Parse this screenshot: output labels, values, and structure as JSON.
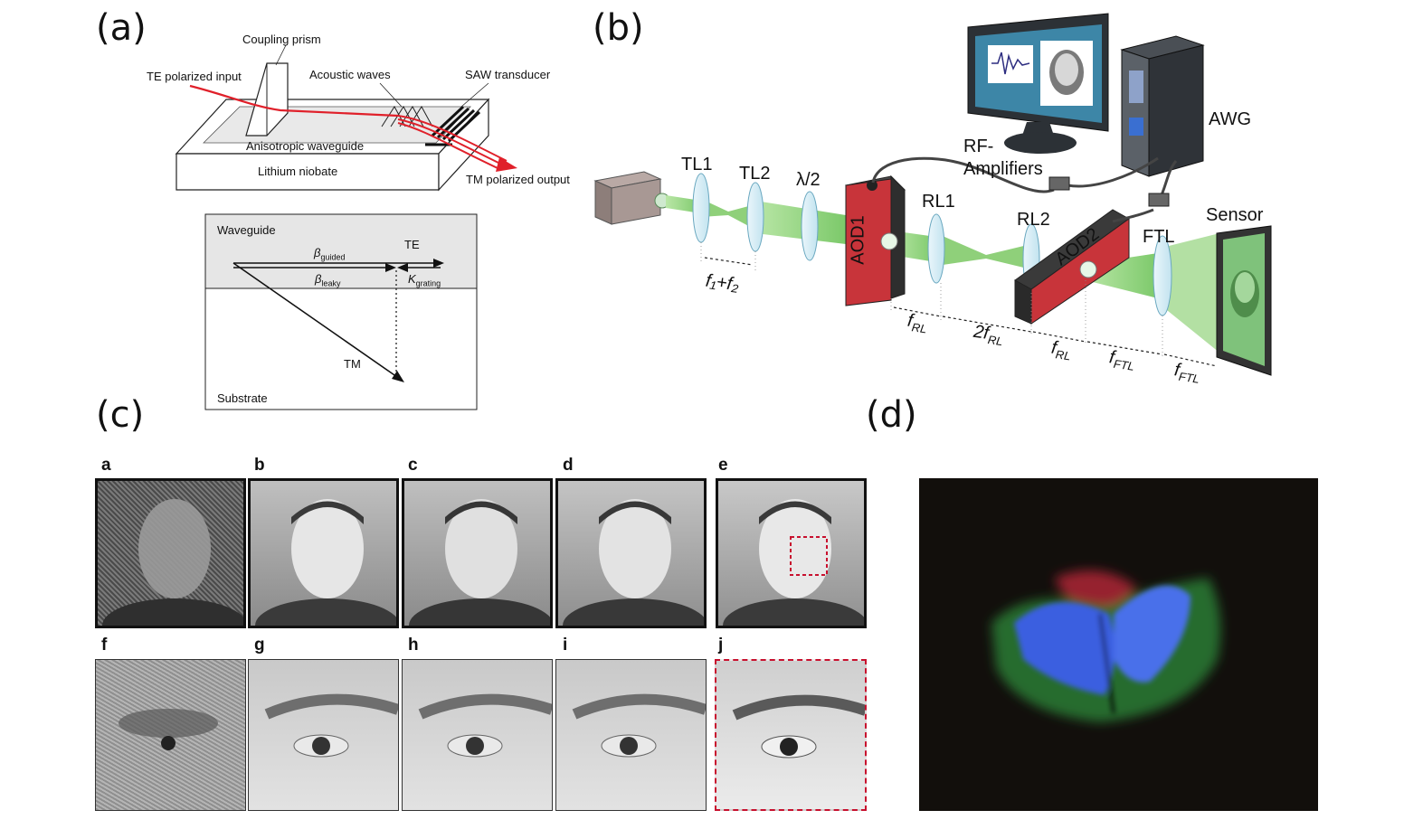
{
  "panels": {
    "a": "(a)",
    "b": "(b)",
    "c": "(c)",
    "d": "(d)"
  },
  "panel_a": {
    "coupling_prism": "Coupling prism",
    "te_input": "TE polarized input",
    "acoustic_waves": "Acoustic waves",
    "saw_transducer": "SAW transducer",
    "waveguide": "Anisotropic waveguide",
    "substrate": "Lithium niobate",
    "tm_output": "TM polarized output",
    "diagram": {
      "waveguide": "Waveguide",
      "te": "TE",
      "beta_guided": "β",
      "beta_guided_sub": "guided",
      "beta_leaky": "β",
      "beta_leaky_sub": "leaky",
      "k_grating": "K",
      "k_grating_sub": "grating",
      "tm": "TM",
      "substrate": "Substrate"
    }
  },
  "panel_b": {
    "tl1": "TL1",
    "tl2": "TL2",
    "half_wave": "λ/2",
    "aod1": "AOD1",
    "rl1": "RL1",
    "rl2": "RL2",
    "aod2": "AOD2",
    "ftl": "FTL",
    "sensor": "Sensor",
    "rf_amplifiers_1": "RF-",
    "rf_amplifiers_2": "Amplifiers",
    "awg": "AWG",
    "f1f2": "f₁+f₂",
    "distances": [
      {
        "main": "f",
        "sub": "RL"
      },
      {
        "main": "2f",
        "sub": "RL"
      },
      {
        "main": "f",
        "sub": "RL"
      },
      {
        "main": "f",
        "sub": "FTL"
      },
      {
        "main": "f",
        "sub": "FTL"
      }
    ]
  },
  "panel_c": {
    "top_labels": [
      "a",
      "b",
      "c",
      "d",
      "e"
    ],
    "bottom_labels": [
      "f",
      "g",
      "h",
      "i",
      "j"
    ]
  },
  "colors": {
    "beam": "#7cc96a",
    "aod_red": "#c8343a",
    "laser_red": "#e0202a",
    "dash_red": "#c8102e",
    "butterfly_blue": "#3a5fe0"
  }
}
